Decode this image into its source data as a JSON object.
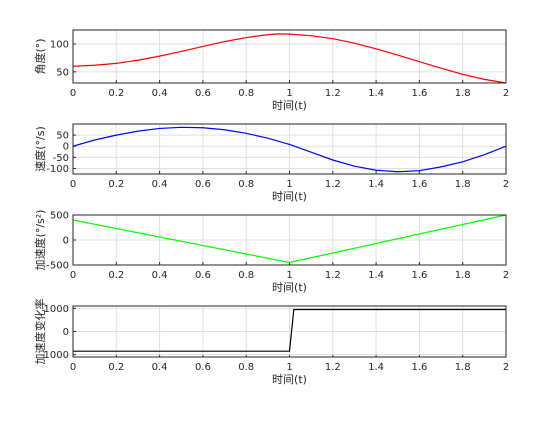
{
  "chart_data": [
    {
      "type": "line",
      "ylabel": "角度(°)",
      "xlabel": "时间(t)",
      "xlim": [
        0,
        2
      ],
      "ylim": [
        30,
        125
      ],
      "xticks": [
        "0",
        "0.2",
        "0.4",
        "0.6",
        "0.8",
        "1",
        "1.2",
        "1.4",
        "1.6",
        "1.8",
        "2"
      ],
      "yticks": [
        "50",
        "100"
      ],
      "grid": true,
      "color": "#ff0000",
      "series": [
        {
          "x": [
            0,
            0.1,
            0.2,
            0.3,
            0.4,
            0.5,
            0.6,
            0.7,
            0.8,
            0.9,
            0.95,
            1.0,
            1.1,
            1.2,
            1.3,
            1.4,
            1.5,
            1.6,
            1.7,
            1.8,
            1.9,
            2.0
          ],
          "values": [
            60,
            61.8,
            65.2,
            70.8,
            78.2,
            86.6,
            95.5,
            104.2,
            111.4,
            116.7,
            118.0,
            117.6,
            114.8,
            109.4,
            101.4,
            91.3,
            80.0,
            68.2,
            56.5,
            45.6,
            36.5,
            30.0
          ]
        }
      ]
    },
    {
      "type": "line",
      "ylabel": "速度(°/s)",
      "xlabel": "时间(t)",
      "xlim": [
        0,
        2
      ],
      "ylim": [
        -125,
        100
      ],
      "xticks": [
        "0",
        "0.2",
        "0.4",
        "0.6",
        "0.8",
        "1",
        "1.2",
        "1.4",
        "1.6",
        "1.8",
        "2"
      ],
      "yticks": [
        "-100",
        "-50",
        "0",
        "50"
      ],
      "grid": true,
      "color": "#0000ff",
      "series": [
        {
          "x": [
            0,
            0.1,
            0.2,
            0.3,
            0.4,
            0.5,
            0.6,
            0.7,
            0.8,
            0.9,
            1.0,
            1.1,
            1.2,
            1.3,
            1.4,
            1.5,
            1.6,
            1.7,
            1.8,
            1.9,
            2.0
          ],
          "values": [
            0,
            28,
            50,
            68,
            80,
            85,
            83,
            74,
            58,
            36,
            8,
            -27,
            -62,
            -90,
            -108,
            -115,
            -110,
            -93,
            -70,
            -38,
            0
          ]
        }
      ]
    },
    {
      "type": "line",
      "ylabel": "加速度(°/s²)",
      "xlabel": "时间(t)",
      "xlim": [
        0,
        2
      ],
      "ylim": [
        -500,
        500
      ],
      "xticks": [
        "0",
        "0.2",
        "0.4",
        "0.6",
        "0.8",
        "1",
        "1.2",
        "1.4",
        "1.6",
        "1.8",
        "2"
      ],
      "yticks": [
        "-500",
        "0",
        "500"
      ],
      "grid": true,
      "color": "#00ff00",
      "series": [
        {
          "x": [
            0,
            1,
            2
          ],
          "values": [
            400,
            -450,
            500
          ]
        }
      ]
    },
    {
      "type": "line",
      "ylabel": "加速度变化率",
      "xlabel": "时间(t)",
      "xlim": [
        0,
        2
      ],
      "ylim": [
        -1100,
        1100
      ],
      "xticks": [
        "0",
        "0.2",
        "0.4",
        "0.6",
        "0.8",
        "1",
        "1.2",
        "1.4",
        "1.6",
        "1.8",
        "2"
      ],
      "yticks": [
        "-1000",
        "0",
        "1000"
      ],
      "grid": true,
      "color": "#000000",
      "series": [
        {
          "x": [
            0,
            1,
            1.02,
            2
          ],
          "values": [
            -850,
            -850,
            950,
            950
          ]
        }
      ]
    }
  ]
}
